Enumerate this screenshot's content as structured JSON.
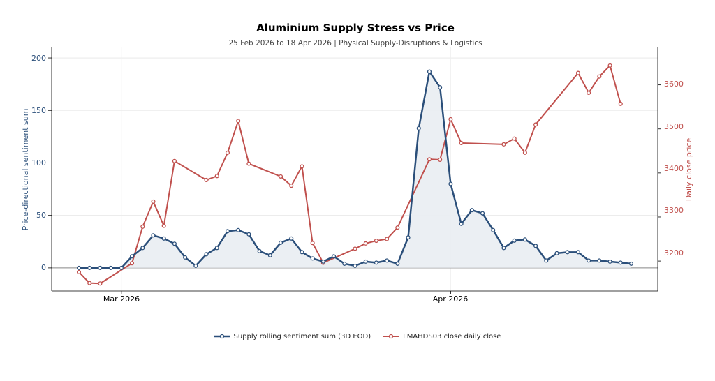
{
  "chart_data": {
    "type": "line",
    "title": "Aluminium Supply Stress vs Price",
    "subtitle": "25 Feb 2026 to 18 Apr 2026 | Physical Supply-Disruptions & Logistics",
    "ylabel_left": "Price-directional sentiment sum",
    "ylabel_right": "Daily close price",
    "x_ticks": [
      "Mar 2026",
      "Apr 2026"
    ],
    "y_left_ticks": [
      "0",
      "50",
      "100",
      "150",
      "200"
    ],
    "y_right_ticks": [
      "3200",
      "3300",
      "3400",
      "3500",
      "3600"
    ],
    "ylim_left": [
      -22,
      210
    ],
    "ylim_right": [
      3132,
      3685
    ],
    "grid": true,
    "legend_position": "bottom",
    "series": [
      {
        "name": "Supply rolling sentiment sum (3D EOD)",
        "axis": "left",
        "color": "#2b4f7a",
        "fill": "#e9edf2",
        "x": [
          "2026-02-25",
          "2026-02-26",
          "2026-02-27",
          "2026-02-28",
          "2026-03-01",
          "2026-03-02",
          "2026-03-03",
          "2026-03-04",
          "2026-03-05",
          "2026-03-06",
          "2026-03-07",
          "2026-03-08",
          "2026-03-09",
          "2026-03-10",
          "2026-03-11",
          "2026-03-12",
          "2026-03-13",
          "2026-03-14",
          "2026-03-15",
          "2026-03-16",
          "2026-03-17",
          "2026-03-18",
          "2026-03-19",
          "2026-03-20",
          "2026-03-21",
          "2026-03-22",
          "2026-03-23",
          "2026-03-24",
          "2026-03-25",
          "2026-03-26",
          "2026-03-27",
          "2026-03-28",
          "2026-03-29",
          "2026-03-30",
          "2026-03-31",
          "2026-04-01",
          "2026-04-02",
          "2026-04-03",
          "2026-04-04",
          "2026-04-05",
          "2026-04-06",
          "2026-04-07",
          "2026-04-08",
          "2026-04-09",
          "2026-04-10",
          "2026-04-11",
          "2026-04-12",
          "2026-04-13",
          "2026-04-14",
          "2026-04-15",
          "2026-04-16",
          "2026-04-17",
          "2026-04-18"
        ],
        "values": [
          0,
          0,
          0,
          0,
          0,
          11,
          19,
          31,
          28,
          23,
          10,
          2,
          13,
          19,
          35,
          36,
          32,
          16,
          12,
          24,
          28,
          15,
          9,
          6,
          11,
          4,
          2,
          6,
          5,
          7,
          4,
          29,
          133,
          187,
          172,
          80,
          42,
          55,
          52,
          36,
          19,
          26,
          27,
          21,
          7,
          14,
          15,
          15,
          7,
          7,
          6,
          5,
          4
        ]
      },
      {
        "name": "LMAHDS03 close daily close",
        "axis": "right",
        "color": "#c0504d",
        "x": [
          "2026-02-25",
          "2026-02-26",
          "2026-02-27",
          "2026-03-02",
          "2026-03-03",
          "2026-03-04",
          "2026-03-05",
          "2026-03-06",
          "2026-03-09",
          "2026-03-10",
          "2026-03-11",
          "2026-03-12",
          "2026-03-13",
          "2026-03-16",
          "2026-03-17",
          "2026-03-18",
          "2026-03-19",
          "2026-03-20",
          "2026-03-23",
          "2026-03-24",
          "2026-03-25",
          "2026-03-26",
          "2026-03-27",
          "2026-03-30",
          "2026-03-31",
          "2026-04-01",
          "2026-04-02",
          "2026-04-06",
          "2026-04-07",
          "2026-04-08",
          "2026-04-09",
          "2026-04-13",
          "2026-04-14",
          "2026-04-15",
          "2026-04-16",
          "2026-04-17"
        ],
        "values": [
          3175,
          3150,
          3149,
          3195,
          3278,
          3335,
          3280,
          3427,
          3384,
          3393,
          3446,
          3518,
          3421,
          3392,
          3371,
          3415,
          3241,
          3196,
          3228,
          3240,
          3246,
          3250,
          3276,
          3431,
          3430,
          3522,
          3468,
          3465,
          3478,
          3446,
          3510,
          3627,
          3582,
          3619,
          3644,
          3557
        ]
      }
    ]
  }
}
